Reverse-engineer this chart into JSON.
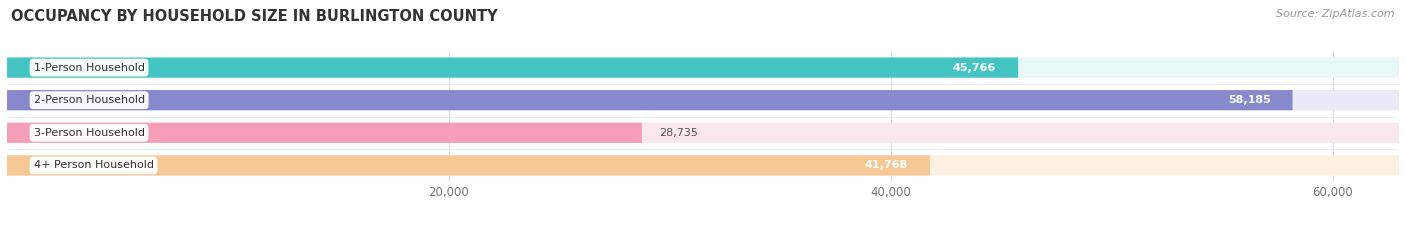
{
  "title": "OCCUPANCY BY HOUSEHOLD SIZE IN BURLINGTON COUNTY",
  "source": "Source: ZipAtlas.com",
  "categories": [
    "1-Person Household",
    "2-Person Household",
    "3-Person Household",
    "4+ Person Household"
  ],
  "values": [
    45766,
    58185,
    28735,
    41768
  ],
  "bar_colors": [
    "#45C4C4",
    "#8888CC",
    "#F49EB8",
    "#F5C896"
  ],
  "bar_bg_colors": [
    "#E8F8F8",
    "#EAEAF8",
    "#FAE8EE",
    "#FDF0E0"
  ],
  "xlim": [
    0,
    63000
  ],
  "xticks": [
    20000,
    40000,
    60000
  ],
  "xtick_labels": [
    "20,000",
    "40,000",
    "60,000"
  ],
  "title_fontsize": 10.5,
  "source_fontsize": 8,
  "bar_height": 0.62,
  "figsize": [
    14.06,
    2.33
  ],
  "dpi": 100,
  "background_color": "#ffffff",
  "grid_color": "#dddddd",
  "value_threshold": 40000
}
